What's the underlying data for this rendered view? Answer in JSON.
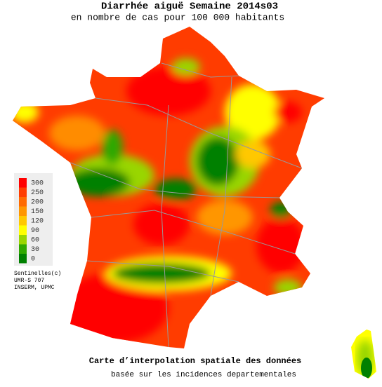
{
  "header": {
    "title": "Diarrhée aiguë Semaine 2014s03",
    "subtitle": "en nombre de cas pour 100 000 habitants"
  },
  "legend": {
    "items": [
      {
        "value": 300,
        "color": "#ff0000"
      },
      {
        "value": 250,
        "color": "#ff3c00"
      },
      {
        "value": 200,
        "color": "#ff6a00"
      },
      {
        "value": 150,
        "color": "#ff9600"
      },
      {
        "value": 120,
        "color": "#ffc800"
      },
      {
        "value": 90,
        "color": "#ffff00"
      },
      {
        "value": 60,
        "color": "#99d600"
      },
      {
        "value": 30,
        "color": "#2fa800"
      },
      {
        "value": 0,
        "color": "#008000"
      }
    ]
  },
  "credits": [
    "Sentinelles(c)",
    "UMR-S 707",
    "INSERM, UPMC"
  ],
  "footer": {
    "title": "Carte d’interpolation spatiale des données",
    "subtitle": "basée sur les incidences departementales"
  }
}
